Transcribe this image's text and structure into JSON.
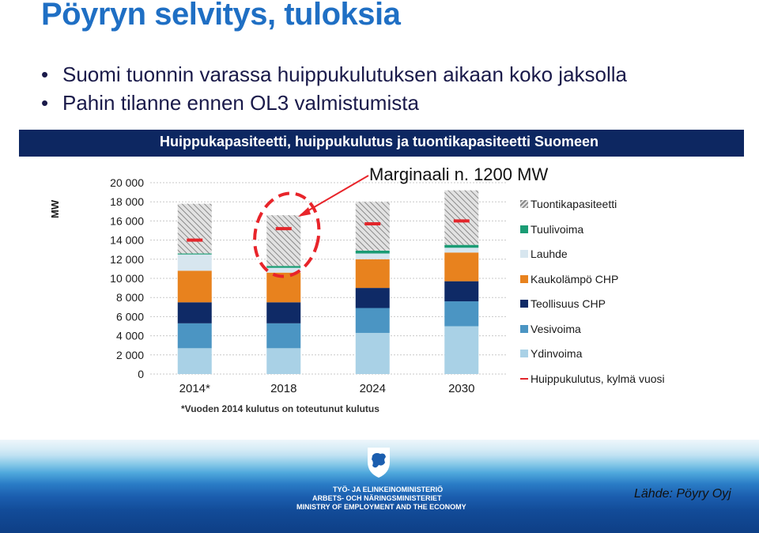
{
  "slide": {
    "title": "Pöyryn selvitys, tuloksia",
    "bullets": [
      "Suomi tuonnin varassa huippukulutuksen aikaan koko jaksolla",
      "Pahin tilanne ennen OL3 valmistumista"
    ],
    "annotation": "Marginaali n. 1200 MW",
    "source": "Lähde: Pöyry Oyj",
    "ministry": [
      "TYÖ- JA ELINKEINOMINISTERIÖ",
      "ARBETS- OCH NÄRINGSMINISTERIET",
      "MINISTRY OF EMPLOYMENT AND THE ECONOMY"
    ],
    "colors": {
      "title": "#1f6fc4",
      "banner": "#0d2761",
      "annotation_red": "#e8242a"
    },
    "icons": [
      "finnish-lion-coat-of-arms-icon"
    ]
  },
  "chart_data": {
    "type": "bar",
    "stacked": true,
    "title": "Huippukapasiteetti, huippukulutus ja tuontikapasiteetti Suomeen",
    "ylabel": "MW",
    "ylim": [
      0,
      20000
    ],
    "yticks": [
      "0",
      "2 000",
      "4 000",
      "6 000",
      "8 000",
      "10 000",
      "12 000",
      "14 000",
      "16 000",
      "18 000",
      "20 000"
    ],
    "categories": [
      "2014*",
      "2018",
      "2024",
      "2030"
    ],
    "footnote": "*Vuoden 2014 kulutus on toteutunut kulutus",
    "series": [
      {
        "name": "Ydinvoima",
        "color": "#a9d1e6",
        "values": [
          2700,
          2700,
          4300,
          5000
        ]
      },
      {
        "name": "Vesivoima",
        "color": "#4b95c3",
        "values": [
          2600,
          2600,
          2600,
          2600
        ]
      },
      {
        "name": "Teollisuus CHP",
        "color": "#0f2a66",
        "values": [
          2200,
          2200,
          2100,
          2100
        ]
      },
      {
        "name": "Kaukolämpö CHP",
        "color": "#e8821e",
        "values": [
          3300,
          3100,
          3000,
          3000
        ]
      },
      {
        "name": "Lauhde",
        "color": "#d7e6ef",
        "values": [
          1700,
          500,
          600,
          500
        ]
      },
      {
        "name": "Tuulivoima",
        "color": "#1a9c74",
        "values": [
          100,
          200,
          300,
          300
        ]
      },
      {
        "name": "Tuontikapasiteetti",
        "color": "#bcbcbc",
        "hatched": true,
        "values": [
          5200,
          5300,
          5100,
          5700
        ]
      }
    ],
    "line_series": {
      "name": "Huippukulutus, kylmä vuosi",
      "color": "#e3262b",
      "values": [
        14000,
        15200,
        15700,
        16000
      ]
    },
    "legend_order": [
      "Tuontikapasiteetti",
      "Tuulivoima",
      "Lauhde",
      "Kaukolämpö CHP",
      "Teollisuus CHP",
      "Vesivoima",
      "Ydinvoima",
      "Huippukulutus, kylmä vuosi"
    ],
    "legend_position": "right",
    "grid": true
  }
}
